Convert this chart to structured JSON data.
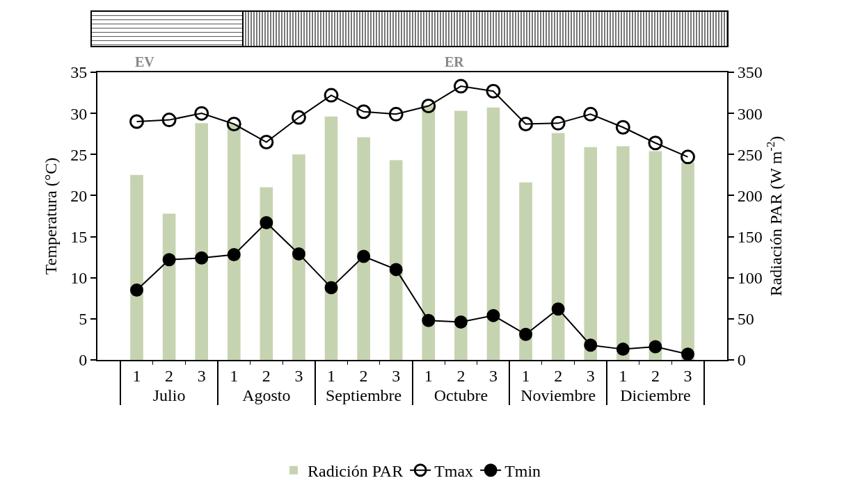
{
  "chart_data": {
    "type": "bar",
    "xlabel": null,
    "ylabel": "Temperatura (°C)",
    "y2label": "Radiación PAR (W m$^{-2}$)",
    "categories": [
      "1",
      "2",
      "3",
      "1",
      "2",
      "3",
      "1",
      "2",
      "3",
      "1",
      "2",
      "3",
      "1",
      "2",
      "3",
      "1",
      "2",
      "3"
    ],
    "annotations": [
      "EV",
      "ER",
      "Julio",
      "Agosto",
      "Septiembre",
      "Octubre",
      "Noviembre",
      "Diciembre"
    ],
    "series": [
      {
        "name": "Radición PAR",
        "axis": "y2",
        "color": "#c6d3b0",
        "values": [
          225,
          178,
          288,
          287,
          210,
          250,
          296,
          271,
          243,
          310,
          303,
          307,
          216,
          276,
          259,
          260,
          254,
          240
        ]
      },
      {
        "name": "Tmax",
        "type": "line",
        "marker": "circle-open",
        "color": "#000000",
        "values": [
          29.0,
          29.2,
          30.0,
          28.7,
          26.5,
          29.5,
          32.2,
          30.2,
          29.9,
          30.9,
          33.3,
          32.7,
          28.7,
          28.8,
          29.9,
          28.3,
          26.4,
          24.7
        ]
      },
      {
        "name": "Tmin",
        "type": "line",
        "marker": "circle",
        "color": "#000000",
        "values": [
          8.5,
          12.2,
          12.4,
          12.8,
          16.7,
          12.9,
          8.8,
          12.6,
          11.0,
          4.8,
          4.6,
          5.4,
          3.1,
          6.2,
          1.8,
          1.3,
          1.6,
          0.7
        ]
      }
    ],
    "ylim": [
      0,
      35
    ],
    "yticks": [
      0,
      5,
      10,
      15,
      20,
      25,
      30,
      35
    ],
    "y2lim": [
      0,
      350
    ],
    "y2ticks": [
      0,
      50,
      100,
      150,
      200,
      250,
      300,
      350
    ],
    "grid": false,
    "legend": "bottom"
  }
}
